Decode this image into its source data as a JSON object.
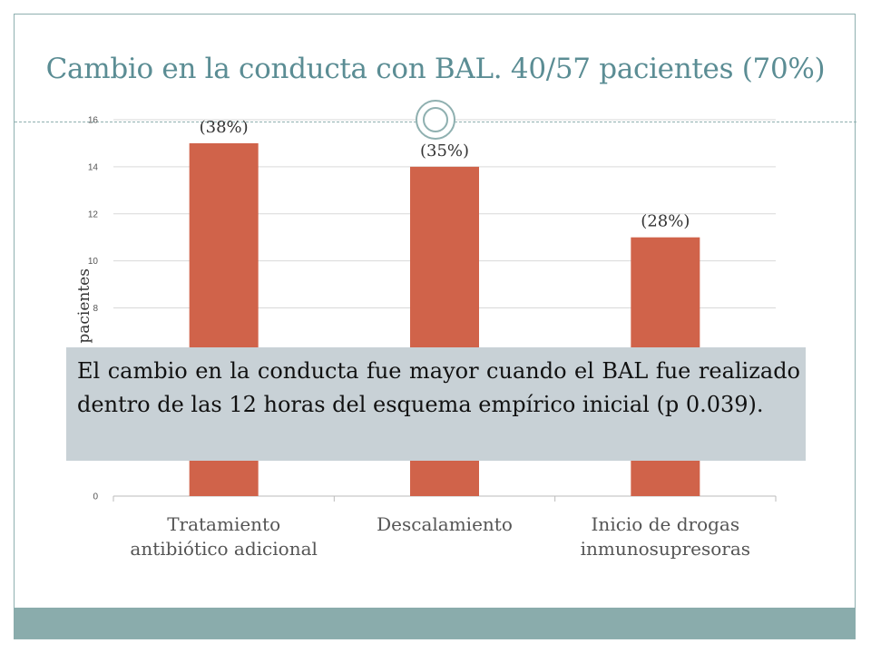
{
  "slide": {
    "title": "Cambio en la conducta con BAL. 40/57 pacientes (70%)",
    "callout": "El cambio en la conducta fue mayor cuando el BAL fue realizado dentro de las 12 horas del esquema empírico inicial (p 0.039).",
    "colors": {
      "accent": "#5b8d94",
      "bar": "#d0634a",
      "footer": "#8aacac",
      "callout_bg": "#c8d1d6"
    }
  },
  "chart_data": {
    "type": "bar",
    "title": "",
    "xlabel": "",
    "ylabel": "de pacientes",
    "ylim": [
      0,
      16
    ],
    "yticks": [
      0,
      2,
      4,
      6,
      8,
      10,
      12,
      14,
      16
    ],
    "grid": true,
    "categories": [
      [
        "Tratamiento",
        "antibiótico adicional"
      ],
      [
        "Descalamiento"
      ],
      [
        "Inicio de drogas",
        "inmunosupresoras"
      ]
    ],
    "values": [
      15,
      14,
      11
    ],
    "data_labels": [
      "(38%)",
      "(35%)",
      "(28%)"
    ]
  }
}
